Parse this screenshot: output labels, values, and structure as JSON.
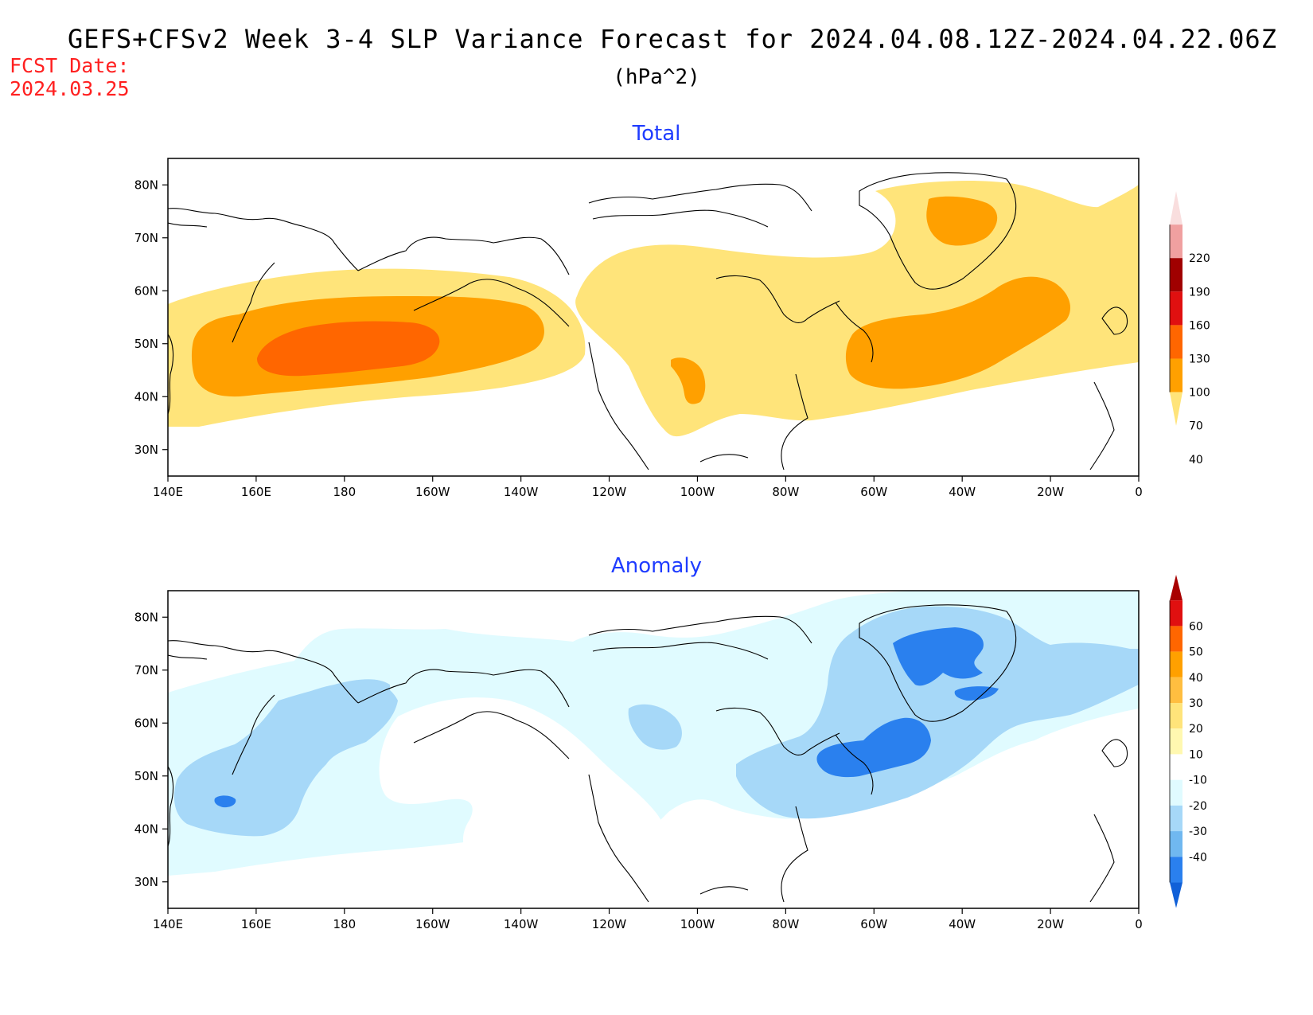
{
  "header": {
    "title": "GEFS+CFSv2 Week 3-4 SLP Variance Forecast for 2024.04.08.12Z-2024.04.22.06Z",
    "units": "(hPa^2)",
    "fcst_label": "FCST Date:",
    "fcst_date": "2024.03.25"
  },
  "panels": {
    "total": {
      "title": "Total"
    },
    "anomaly": {
      "title": "Anomaly"
    }
  },
  "axes": {
    "lon_labels": [
      "140E",
      "160E",
      "180",
      "160W",
      "140W",
      "120W",
      "100W",
      "80W",
      "60W",
      "40W",
      "20W",
      "0"
    ],
    "lat_labels": [
      "80N",
      "70N",
      "60N",
      "50N",
      "40N",
      "30N"
    ]
  },
  "colorbars": {
    "total": {
      "labels": [
        "220",
        "190",
        "160",
        "130",
        "100",
        "70",
        "40"
      ],
      "colors": [
        "#f9dede",
        "#f0a0a0",
        "#a00000",
        "#e01010",
        "#ff6600",
        "#ffa000",
        "#ffe47a"
      ]
    },
    "anomaly": {
      "labels": [
        "60",
        "50",
        "40",
        "30",
        "20",
        "10",
        "-10",
        "-20",
        "-30",
        "-40"
      ],
      "colors": [
        "#a80000",
        "#e01010",
        "#ff6600",
        "#ffa000",
        "#ffbe40",
        "#ffe47a",
        "#fff8b0",
        "#ffffff",
        "#e0fbff",
        "#a6d8f8",
        "#70b8f0",
        "#2a80ee",
        "#1060d8"
      ]
    }
  },
  "fill_colors": {
    "level_40_70": "#ffe47a",
    "level_70_100": "#ffa000",
    "level_100_130": "#ff6600",
    "anom_m10_m20": "#e0fbff",
    "anom_m20_m30": "#a6d8f8",
    "anom_m30_m40": "#2a80ee"
  }
}
